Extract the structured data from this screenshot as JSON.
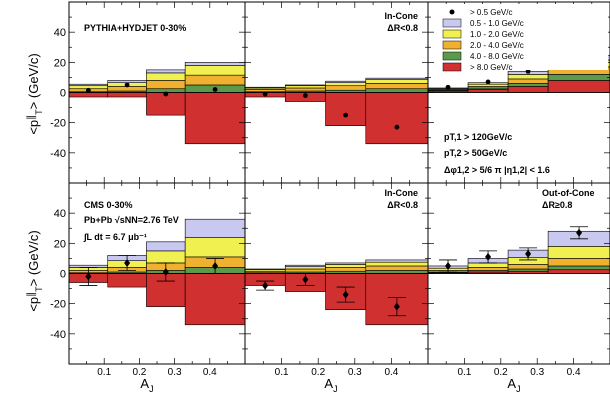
{
  "figure": {
    "y_axis_label": "<p∥T> (GeV/c)",
    "y_axis_label_parts": {
      "main": "<p",
      "parallel": "∥",
      "sub": "T",
      "tail": "> (GeV/c)"
    },
    "x_axis_label": "AJ",
    "x_axis_label_parts": {
      "main": "A",
      "sub": "J"
    },
    "y_ticks": [
      "40",
      "20",
      "0",
      "-20",
      "-40"
    ],
    "x_ticks": [
      "0.1",
      "0.2",
      "0.3",
      "0.4"
    ],
    "legend": {
      "items": [
        {
          "label": "> 0.5 GeV/c",
          "color": "#000000",
          "marker": "dot"
        },
        {
          "label": "0.5 - 1.0 GeV/c",
          "color": "#c8c8f0"
        },
        {
          "label": "1.0 - 2.0 GeV/c",
          "color": "#f0f050"
        },
        {
          "label": "2.0 - 4.0 GeV/c",
          "color": "#f0b030"
        },
        {
          "label": "4.0 - 8.0 GeV/c",
          "color": "#5a9a4a"
        },
        {
          "label": "> 8.0 GeV/c",
          "color": "#d03030"
        }
      ]
    },
    "top_row_label": "PYTHIA+HYDJET 0-30%",
    "bottom_row_label_lines": [
      "CMS 0-30%",
      "Pb+Pb √sNN=2.76 TeV",
      "∫L dt = 6.7 μb⁻¹"
    ],
    "cuts": {
      "line1": "pT,1 > 120GeV/c",
      "line2": "pT,2 > 50GeV/c",
      "line3": "Δφ1,2 > 5/6 π  |η1,2| < 1.6"
    },
    "panel_titles": {
      "in_cone": {
        "line1": "In-Cone",
        "line2": "ΔR<0.8"
      },
      "out_cone": {
        "line1": "Out-of-Cone",
        "line2": "ΔR≥0.8"
      }
    }
  },
  "chart_data": [
    {
      "type": "stacked-bar",
      "title": "PYTHIA+HYDJET 0-30% (All)",
      "categories": [
        "0.0-0.11",
        "0.11-0.22",
        "0.22-0.33",
        "0.33-0.5"
      ],
      "xlim": [
        0,
        0.5
      ],
      "ylim": [
        -60,
        60
      ],
      "xlabel": "AJ",
      "ylabel": "<p∥T> (GeV/c)",
      "positive_series": [
        {
          "name": "0.5 - 1.0 GeV/c",
          "values": [
            1,
            1.5,
            2,
            2
          ]
        },
        {
          "name": "1.0 - 2.0 GeV/c",
          "values": [
            2,
            2.5,
            5,
            6.5
          ]
        },
        {
          "name": "2.0 - 4.0 GeV/c",
          "values": [
            2,
            3,
            5.5,
            6.5
          ]
        },
        {
          "name": "4.0 - 8.0 GeV/c",
          "values": [
            0.5,
            1,
            2.5,
            5
          ]
        },
        {
          "name": "> 8.0 GeV/c",
          "values": [
            0,
            0,
            0,
            0
          ]
        }
      ],
      "negative_series": [
        {
          "name": "> 8.0 GeV/c",
          "values": [
            -3,
            -3,
            -15,
            -34
          ]
        }
      ],
      "points": [
        1.5,
        5,
        -1,
        2
      ]
    },
    {
      "type": "stacked-bar",
      "title": "PYTHIA+HYDJET 0-30% In-Cone ΔR<0.8",
      "categories": [
        "0.0-0.11",
        "0.11-0.22",
        "0.22-0.33",
        "0.33-0.5"
      ],
      "xlim": [
        0,
        0.5
      ],
      "ylim": [
        -60,
        60
      ],
      "positive_series": [
        {
          "name": "0.5 - 1.0 GeV/c",
          "values": [
            0.5,
            0.5,
            1,
            1
          ]
        },
        {
          "name": "1.0 - 2.0 GeV/c",
          "values": [
            1,
            1.5,
            2,
            2.5
          ]
        },
        {
          "name": "2.0 - 4.0 GeV/c",
          "values": [
            1.5,
            2,
            3,
            3.5
          ]
        },
        {
          "name": "4.0 - 8.0 GeV/c",
          "values": [
            0.5,
            1,
            1.5,
            2.5
          ]
        },
        {
          "name": "> 8.0 GeV/c",
          "values": [
            0,
            0,
            0,
            0
          ]
        }
      ],
      "negative_series": [
        {
          "name": "> 8.0 GeV/c",
          "values": [
            -3,
            -6,
            -22,
            -34
          ]
        }
      ],
      "points": [
        -1,
        -2,
        -15,
        -23
      ]
    },
    {
      "type": "stacked-bar",
      "title": "PYTHIA+HYDJET 0-30% Out-of-Cone ΔR≥0.8",
      "categories": [
        "0.0-0.11",
        "0.11-0.22",
        "0.22-0.33",
        "0.33-0.5"
      ],
      "xlim": [
        0,
        0.5
      ],
      "ylim": [
        -60,
        60
      ],
      "positive_series": [
        {
          "name": "0.5 - 1.0 GeV/c",
          "values": [
            0.5,
            1,
            2,
            3
          ]
        },
        {
          "name": "1.0 - 2.0 GeV/c",
          "values": [
            0.5,
            1.5,
            3,
            4.5
          ]
        },
        {
          "name": "2.0 - 4.0 GeV/c",
          "values": [
            0.5,
            1,
            3,
            5
          ]
        },
        {
          "name": "4.0 - 8.0 GeV/c",
          "values": [
            0.5,
            1,
            2,
            4
          ]
        },
        {
          "name": "> 8.0 GeV/c",
          "values": [
            1,
            2,
            4,
            8
          ]
        }
      ],
      "negative_series": [],
      "points": [
        3.5,
        7,
        14,
        25
      ]
    },
    {
      "type": "stacked-bar",
      "title": "CMS 0-30% (All)",
      "categories": [
        "0.0-0.11",
        "0.11-0.22",
        "0.22-0.33",
        "0.33-0.5"
      ],
      "xlim": [
        0,
        0.5
      ],
      "ylim": [
        -60,
        60
      ],
      "positive_series": [
        {
          "name": "0.5 - 1.0 GeV/c",
          "values": [
            1.5,
            3.5,
            6,
            12
          ]
        },
        {
          "name": "1.0 - 2.0 GeV/c",
          "values": [
            2,
            4.5,
            8,
            13
          ]
        },
        {
          "name": "2.0 - 4.0 GeV/c",
          "values": [
            1.5,
            3,
            5,
            7
          ]
        },
        {
          "name": "4.0 - 8.0 GeV/c",
          "values": [
            0.5,
            1,
            2,
            4
          ]
        },
        {
          "name": "> 8.0 GeV/c",
          "values": [
            0,
            0,
            0,
            0
          ]
        }
      ],
      "negative_series": [
        {
          "name": "> 8.0 GeV/c",
          "values": [
            -6,
            -9,
            -22,
            -34
          ]
        }
      ],
      "points": [
        -2,
        7,
        1,
        5
      ],
      "errors": [
        6,
        5,
        6,
        5
      ]
    },
    {
      "type": "stacked-bar",
      "title": "CMS 0-30% In-Cone ΔR<0.8",
      "categories": [
        "0.0-0.11",
        "0.11-0.22",
        "0.22-0.33",
        "0.33-0.5"
      ],
      "xlim": [
        0,
        0.5
      ],
      "ylim": [
        -60,
        60
      ],
      "positive_series": [
        {
          "name": "0.5 - 1.0 GeV/c",
          "values": [
            0.5,
            1,
            1,
            1.5
          ]
        },
        {
          "name": "1.0 - 2.0 GeV/c",
          "values": [
            1,
            1.5,
            2,
            2.5
          ]
        },
        {
          "name": "2.0 - 4.0 GeV/c",
          "values": [
            1,
            2,
            2.5,
            3
          ]
        },
        {
          "name": "4.0 - 8.0 GeV/c",
          "values": [
            0.5,
            1,
            1.5,
            2
          ]
        },
        {
          "name": "> 8.0 GeV/c",
          "values": [
            0,
            0,
            0,
            0
          ]
        }
      ],
      "negative_series": [
        {
          "name": "> 8.0 GeV/c",
          "values": [
            -8,
            -12,
            -24,
            -34
          ]
        }
      ],
      "points": [
        -8,
        -4,
        -14,
        -22
      ],
      "errors": [
        3,
        4,
        5,
        6
      ]
    },
    {
      "type": "stacked-bar",
      "title": "CMS 0-30% Out-of-Cone ΔR≥0.8",
      "categories": [
        "0.0-0.11",
        "0.11-0.22",
        "0.22-0.33",
        "0.33-0.5"
      ],
      "xlim": [
        0,
        0.5
      ],
      "ylim": [
        -60,
        60
      ],
      "positive_series": [
        {
          "name": "0.5 - 1.0 GeV/c",
          "values": [
            1.5,
            3,
            5,
            10
          ]
        },
        {
          "name": "1.0 - 2.0 GeV/c",
          "values": [
            1.5,
            3,
            4.5,
            8
          ]
        },
        {
          "name": "2.0 - 4.0 GeV/c",
          "values": [
            1,
            2,
            3,
            5
          ]
        },
        {
          "name": "4.0 - 8.0 GeV/c",
          "values": [
            0.5,
            1,
            1.5,
            2.5
          ]
        },
        {
          "name": "> 8.0 GeV/c",
          "values": [
            0.5,
            1,
            1.5,
            2.5
          ]
        }
      ],
      "negative_series": [],
      "points": [
        5,
        11,
        13,
        27
      ],
      "errors": [
        4,
        4,
        4,
        4
      ]
    }
  ]
}
